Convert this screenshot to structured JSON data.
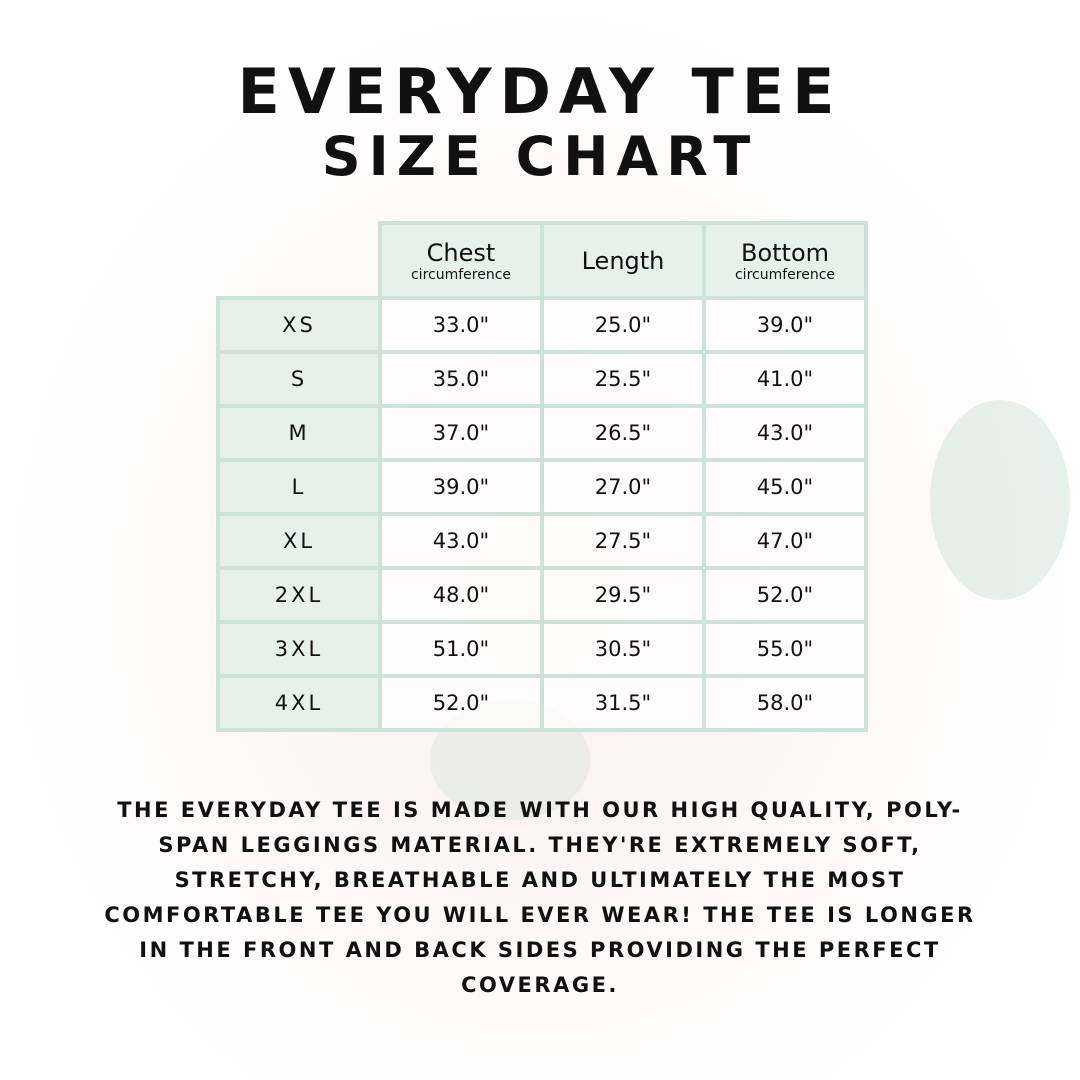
{
  "title_line1": "EVERYDAY TEE",
  "title_line2": "SIZE CHART",
  "table": {
    "headers": [
      {
        "main": "Chest",
        "sub": "circumference"
      },
      {
        "main": "Length",
        "sub": ""
      },
      {
        "main": "Bottom",
        "sub": "circumference"
      }
    ],
    "rows": [
      {
        "size": "XS",
        "chest": "33.0\"",
        "length": "25.0\"",
        "bottom": "39.0\""
      },
      {
        "size": "S",
        "chest": "35.0\"",
        "length": "25.5\"",
        "bottom": "41.0\""
      },
      {
        "size": "M",
        "chest": "37.0\"",
        "length": "26.5\"",
        "bottom": "43.0\""
      },
      {
        "size": "L",
        "chest": "39.0\"",
        "length": "27.0\"",
        "bottom": "45.0\""
      },
      {
        "size": "XL",
        "chest": "43.0\"",
        "length": "27.5\"",
        "bottom": "47.0\""
      },
      {
        "size": "2XL",
        "chest": "48.0\"",
        "length": "29.5\"",
        "bottom": "52.0\""
      },
      {
        "size": "3XL",
        "chest": "51.0\"",
        "length": "30.5\"",
        "bottom": "55.0\""
      },
      {
        "size": "4XL",
        "chest": "52.0\"",
        "length": "31.5\"",
        "bottom": "58.0\""
      }
    ]
  },
  "description": "The Everyday Tee is made with our high quality, poly-span leggings material. They're extremely soft, stretchy, breathable and ultimately the most comfortable tee you will ever wear! The tee is longer in the front and back sides providing the perfect coverage.",
  "colors": {
    "header_bg": "#e7f1ec",
    "border": "#cde2d8"
  }
}
